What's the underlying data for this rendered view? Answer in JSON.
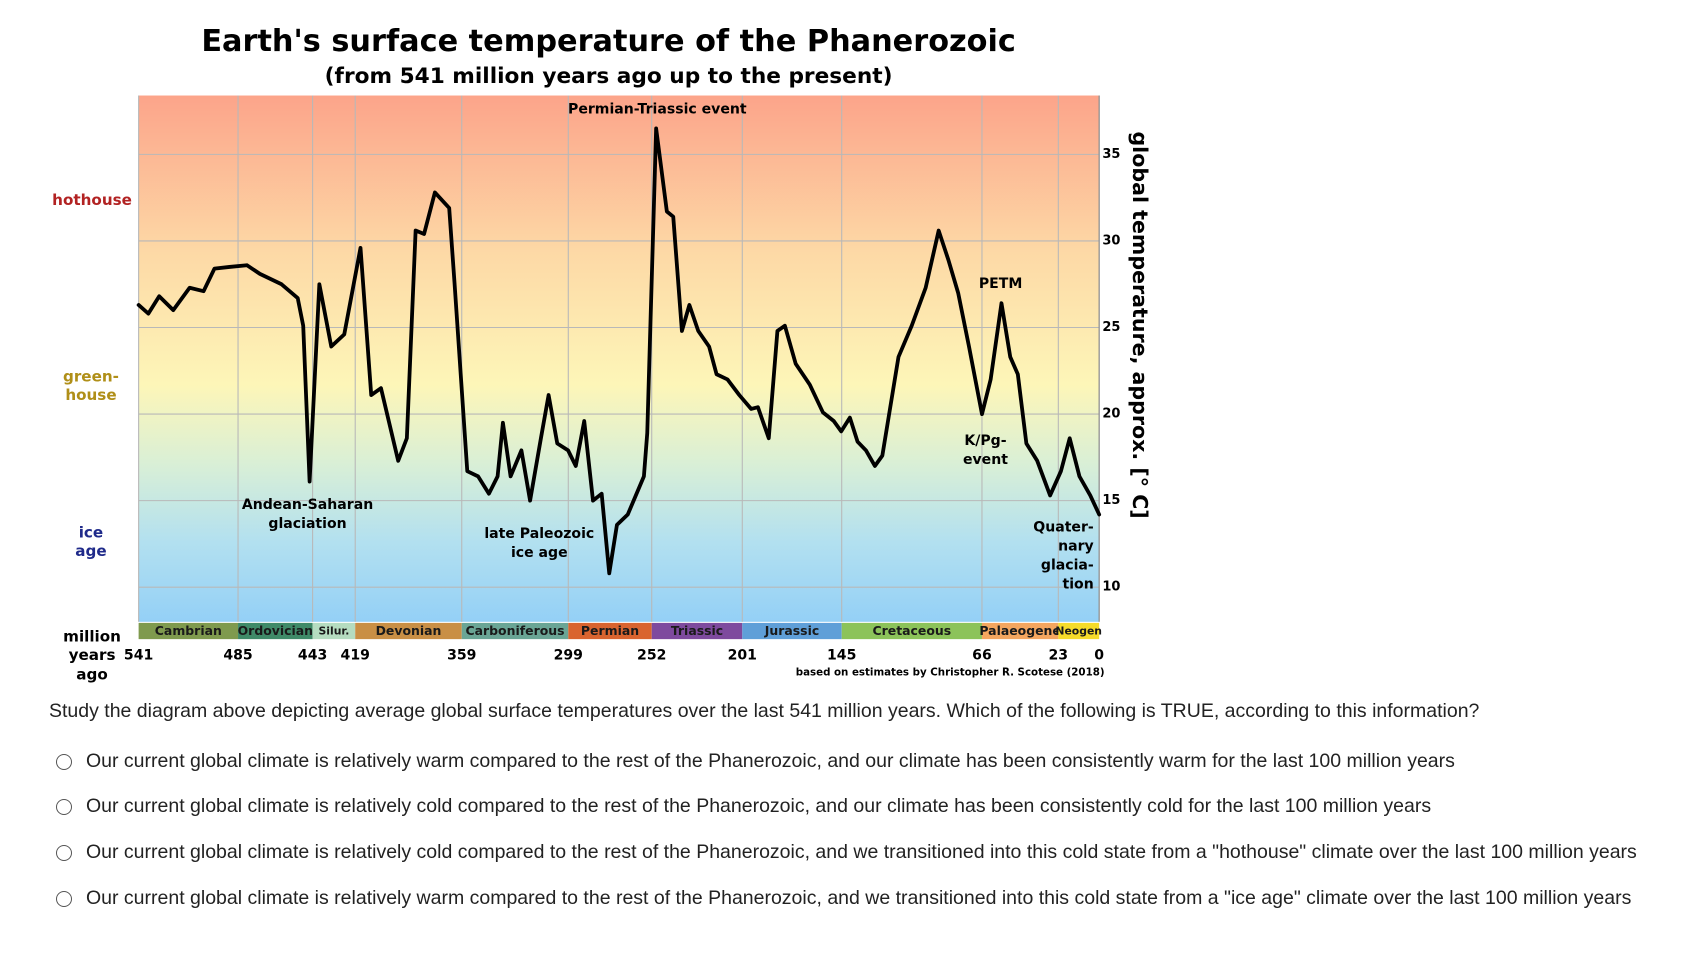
{
  "chart_data": {
    "type": "line",
    "title": "Earth's surface temperature of the Phanerozoic",
    "subtitle": "(from 541 million years ago up to the present)",
    "x_label": [
      "million",
      "years",
      "ago"
    ],
    "y_label": "global temperature, approx. [° C]",
    "source": "based on estimates by Christopher R. Scotese (2018)",
    "xlim": [
      541,
      0
    ],
    "ylim": [
      8,
      38.4
    ],
    "xticks": [
      541,
      485,
      443,
      419,
      359,
      299,
      252,
      201,
      145,
      66,
      23,
      0
    ],
    "yticks": [
      10,
      15,
      20,
      25,
      30,
      35
    ],
    "grid": true,
    "x": [
      541,
      535.5,
      529.4,
      521.5,
      512.3,
      504.4,
      498.3,
      489.8,
      480,
      472.7,
      460.5,
      451.4,
      448.3,
      444.7,
      439.2,
      432.5,
      425.2,
      416,
      410,
      404.5,
      394.8,
      389.9,
      385,
      380.2,
      374.1,
      366.1,
      363.1,
      355.9,
      349.8,
      343.7,
      338.8,
      335.8,
      331.5,
      325.4,
      320.5,
      314.4,
      310.1,
      305.2,
      299.1,
      294.8,
      290,
      285.1,
      280.2,
      275.9,
      271.6,
      265.5,
      256.4,
      254.5,
      249.5,
      243.5,
      239.9,
      235,
      230.8,
      225.8,
      219.7,
      215.5,
      209.3,
      202.7,
      196,
      192.2,
      186.1,
      181.2,
      177,
      170.9,
      163,
      155.6,
      149.5,
      145.3,
      140.4,
      136.1,
      131.3,
      126.3,
      122.1,
      113,
      105.6,
      97.7,
      90.4,
      84.9,
      79.4,
      73.3,
      66,
      61.1,
      55,
      50.1,
      45.8,
      41,
      34.9,
      27.6,
      21.5,
      16.6,
      11.1,
      5,
      0
    ],
    "series": [
      {
        "color": "#000000",
        "values": [
          26.3,
          25.8,
          26.8,
          26,
          27.3,
          27.1,
          28.4,
          28.5,
          28.6,
          28.1,
          27.5,
          26.7,
          25.1,
          16.1,
          27.5,
          23.9,
          24.6,
          29.6,
          21.1,
          21.5,
          17.3,
          18.6,
          30.6,
          30.4,
          32.8,
          31.9,
          27.6,
          16.7,
          16.4,
          15.4,
          16.4,
          19.5,
          16.4,
          17.9,
          15,
          18.6,
          21.1,
          18.3,
          17.9,
          17,
          19.6,
          15,
          15.4,
          10.8,
          13.6,
          14.2,
          16.4,
          18.9,
          36.5,
          31.7,
          31.4,
          24.8,
          26.3,
          24.8,
          23.9,
          22.3,
          22,
          21.1,
          20.3,
          20.4,
          18.6,
          24.8,
          25.1,
          22.9,
          21.7,
          20.1,
          19.6,
          19,
          19.8,
          18.4,
          17.9,
          17,
          17.6,
          23.3,
          25.1,
          27.3,
          30.6,
          28.9,
          27,
          23.9,
          20,
          22,
          26.4,
          23.3,
          22.3,
          18.3,
          17.3,
          15.3,
          16.7,
          18.6,
          16.4,
          15.3,
          14.2
        ]
      }
    ],
    "periods": [
      {
        "name": "Cambrian",
        "start": 541,
        "end": 485,
        "color": "#7f9a4e"
      },
      {
        "name": "Ordovician",
        "start": 485,
        "end": 443,
        "color": "#3f8a68"
      },
      {
        "name": "Silur.",
        "start": 443,
        "end": 419,
        "color": "#b5dcc0"
      },
      {
        "name": "Devonian",
        "start": 419,
        "end": 359,
        "color": "#c98f45"
      },
      {
        "name": "Carboniferous",
        "start": 359,
        "end": 299,
        "color": "#6aa595"
      },
      {
        "name": "Permian",
        "start": 299,
        "end": 252,
        "color": "#d9642f"
      },
      {
        "name": "Triassic",
        "start": 252,
        "end": 201,
        "color": "#7e4a9e"
      },
      {
        "name": "Jurassic",
        "start": 201,
        "end": 145,
        "color": "#5f9fd8"
      },
      {
        "name": "Cretaceous",
        "start": 145,
        "end": 66,
        "color": "#8cc35a"
      },
      {
        "name": "Palaeogene",
        "start": 66,
        "end": 23,
        "color": "#f4a65f"
      },
      {
        "name": "Neogen",
        "start": 23,
        "end": 0,
        "color": "#f6dc2a"
      }
    ],
    "climate_zones": [
      {
        "lines": [
          "hothouse"
        ],
        "color": "#b22222"
      },
      {
        "lines": [
          "green-",
          "house"
        ],
        "color": "#b08f18"
      },
      {
        "lines": [
          "ice",
          "age"
        ],
        "color": "#1f2a8a"
      }
    ],
    "annotations": [
      {
        "lines": [
          "Permian-Triassic event"
        ]
      },
      {
        "lines": [
          "Andean-Saharan",
          "glaciation"
        ]
      },
      {
        "lines": [
          "late Paleozoic",
          "ice age"
        ]
      },
      {
        "lines": [
          "PETM"
        ]
      },
      {
        "lines": [
          "K/Pg-",
          "event"
        ]
      },
      {
        "lines": [
          "Quater-",
          "nary",
          "glacia-",
          "tion"
        ]
      }
    ]
  },
  "question": "Study the diagram above depicting average global surface temperatures over the last 541 million years. Which of the following is TRUE, according to this information?",
  "options": [
    "Our current global climate is relatively warm compared to the rest of the Phanerozoic, and our climate has been consistently warm for the last 100 million years",
    "Our current global climate is relatively cold compared to the rest of the Phanerozoic, and our climate has been consistently cold for the last 100 million years",
    "Our current global climate is relatively cold compared to the rest of the Phanerozoic, and we transitioned into this cold state from a \"hothouse\" climate over the last 100 million years",
    "Our current global climate is relatively warm compared to the rest of the Phanerozoic, and we transitioned into this cold state from a \"ice age\" climate over the last 100 million years"
  ]
}
